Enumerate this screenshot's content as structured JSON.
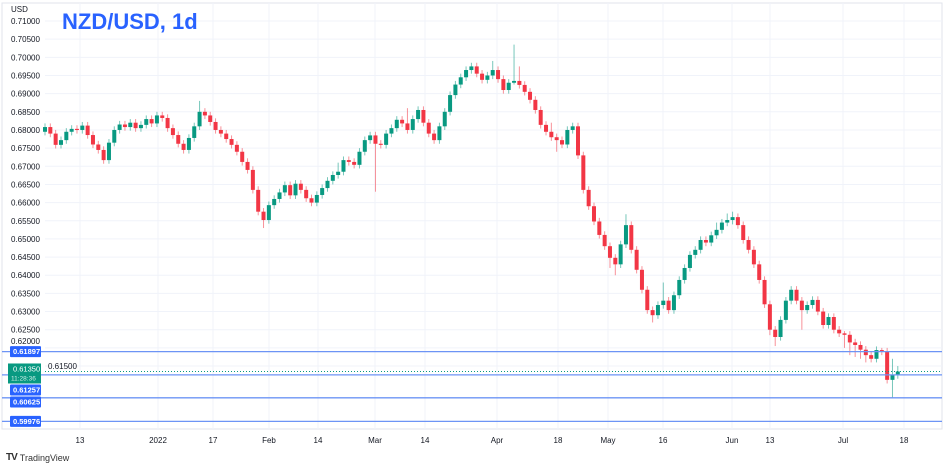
{
  "title": "NZD/USD, 1d",
  "brand": "TradingView",
  "chart_data": {
    "type": "candlestick",
    "title": "NZD/USD, 1d",
    "ylabel": "USD",
    "ylim": [
      0.5985,
      0.7115
    ],
    "y_ticks": [
      "0.71000",
      "0.70500",
      "0.70000",
      "0.69500",
      "0.69000",
      "0.68500",
      "0.68000",
      "0.67500",
      "0.67000",
      "0.66500",
      "0.66000",
      "0.65500",
      "0.65000",
      "0.64500",
      "0.64000",
      "0.63500",
      "0.63000",
      "0.62500",
      "0.62000",
      "0.61500"
    ],
    "x_ticks": [
      "13",
      "2022",
      "17",
      "Feb",
      "14",
      "Mar",
      "14",
      "Apr",
      "18",
      "May",
      "16",
      "Jun",
      "13",
      "Jul",
      "18"
    ],
    "grid": true,
    "colors": {
      "up": "#089981",
      "down": "#f23645",
      "level": "#2962ff",
      "title": "#2962ff"
    },
    "levels": [
      {
        "price": 0.61897,
        "label": "0.61897"
      },
      {
        "price": 0.61257,
        "label": "0.61257"
      },
      {
        "price": 0.60625,
        "label": "0.60625"
      },
      {
        "price": 0.59976,
        "label": "0.59976"
      }
    ],
    "last_price": {
      "price": 0.6135,
      "label": "0.61350",
      "countdown": "11:28:36"
    },
    "candles_ohlc": [
      [
        0.6795,
        0.6818,
        0.6785,
        0.6808
      ],
      [
        0.6808,
        0.6818,
        0.678,
        0.679
      ],
      [
        0.679,
        0.68,
        0.6749,
        0.6759
      ],
      [
        0.6759,
        0.6782,
        0.6749,
        0.6772
      ],
      [
        0.6772,
        0.6805,
        0.6762,
        0.6795
      ],
      [
        0.6795,
        0.6813,
        0.6785,
        0.6803
      ],
      [
        0.6803,
        0.6813,
        0.679,
        0.68
      ],
      [
        0.68,
        0.6822,
        0.679,
        0.6812
      ],
      [
        0.6812,
        0.6822,
        0.6776,
        0.6786
      ],
      [
        0.6786,
        0.6796,
        0.675,
        0.676
      ],
      [
        0.676,
        0.677,
        0.6735,
        0.6745
      ],
      [
        0.6745,
        0.6755,
        0.6707,
        0.6717
      ],
      [
        0.6717,
        0.6775,
        0.6707,
        0.6765
      ],
      [
        0.6765,
        0.681,
        0.6755,
        0.68
      ],
      [
        0.68,
        0.6825,
        0.679,
        0.6815
      ],
      [
        0.6815,
        0.6825,
        0.6798,
        0.6808
      ],
      [
        0.6808,
        0.683,
        0.6798,
        0.682
      ],
      [
        0.682,
        0.683,
        0.6795,
        0.6805
      ],
      [
        0.6805,
        0.6824,
        0.6795,
        0.6814
      ],
      [
        0.6814,
        0.684,
        0.6804,
        0.683
      ],
      [
        0.683,
        0.684,
        0.6808,
        0.6818
      ],
      [
        0.6818,
        0.685,
        0.6808,
        0.684
      ],
      [
        0.684,
        0.685,
        0.6823,
        0.6833
      ],
      [
        0.6833,
        0.6843,
        0.6795,
        0.6805
      ],
      [
        0.6805,
        0.6815,
        0.6776,
        0.6786
      ],
      [
        0.6786,
        0.6796,
        0.6752,
        0.6762
      ],
      [
        0.6762,
        0.6772,
        0.6735,
        0.6745
      ],
      [
        0.6745,
        0.6788,
        0.6735,
        0.6778
      ],
      [
        0.6778,
        0.682,
        0.6768,
        0.681
      ],
      [
        0.681,
        0.688,
        0.68,
        0.685
      ],
      [
        0.685,
        0.686,
        0.683,
        0.684
      ],
      [
        0.684,
        0.685,
        0.6812,
        0.6822
      ],
      [
        0.6822,
        0.6832,
        0.679,
        0.68
      ],
      [
        0.68,
        0.681,
        0.678,
        0.679
      ],
      [
        0.679,
        0.68,
        0.6765,
        0.6775
      ],
      [
        0.6775,
        0.6785,
        0.6749,
        0.6759
      ],
      [
        0.6759,
        0.6769,
        0.673,
        0.674
      ],
      [
        0.674,
        0.675,
        0.6702,
        0.6712
      ],
      [
        0.6712,
        0.6722,
        0.668,
        0.669
      ],
      [
        0.669,
        0.67,
        0.6625,
        0.6635
      ],
      [
        0.6635,
        0.6645,
        0.6565,
        0.6575
      ],
      [
        0.6575,
        0.6585,
        0.653,
        0.6552
      ],
      [
        0.6552,
        0.6603,
        0.6542,
        0.6593
      ],
      [
        0.6593,
        0.662,
        0.6583,
        0.661
      ],
      [
        0.661,
        0.6638,
        0.66,
        0.6628
      ],
      [
        0.6628,
        0.6658,
        0.6618,
        0.6648
      ],
      [
        0.6648,
        0.6658,
        0.661,
        0.662
      ],
      [
        0.662,
        0.6662,
        0.661,
        0.6652
      ],
      [
        0.6652,
        0.6662,
        0.6625,
        0.6635
      ],
      [
        0.6635,
        0.6645,
        0.6602,
        0.6612
      ],
      [
        0.6612,
        0.6622,
        0.659,
        0.66
      ],
      [
        0.66,
        0.6631,
        0.659,
        0.6621
      ],
      [
        0.6621,
        0.665,
        0.6611,
        0.664
      ],
      [
        0.664,
        0.667,
        0.663,
        0.666
      ],
      [
        0.666,
        0.6686,
        0.665,
        0.6676
      ],
      [
        0.6676,
        0.671,
        0.6666,
        0.6685
      ],
      [
        0.6685,
        0.6727,
        0.6675,
        0.6717
      ],
      [
        0.6717,
        0.6727,
        0.6702,
        0.6712
      ],
      [
        0.6712,
        0.6722,
        0.6694,
        0.6704
      ],
      [
        0.6704,
        0.675,
        0.6694,
        0.674
      ],
      [
        0.674,
        0.6782,
        0.673,
        0.6772
      ],
      [
        0.6772,
        0.6795,
        0.6762,
        0.6785
      ],
      [
        0.6785,
        0.6795,
        0.663,
        0.6762
      ],
      [
        0.6762,
        0.6772,
        0.6749,
        0.6759
      ],
      [
        0.6759,
        0.68,
        0.6749,
        0.679
      ],
      [
        0.679,
        0.6815,
        0.678,
        0.6805
      ],
      [
        0.6805,
        0.6838,
        0.6795,
        0.6828
      ],
      [
        0.6828,
        0.6838,
        0.6808,
        0.6818
      ],
      [
        0.6818,
        0.686,
        0.679,
        0.68
      ],
      [
        0.68,
        0.684,
        0.679,
        0.683
      ],
      [
        0.683,
        0.6865,
        0.682,
        0.6855
      ],
      [
        0.6855,
        0.6865,
        0.681,
        0.682
      ],
      [
        0.682,
        0.683,
        0.678,
        0.679
      ],
      [
        0.679,
        0.68,
        0.6762,
        0.6772
      ],
      [
        0.6772,
        0.682,
        0.6762,
        0.681
      ],
      [
        0.681,
        0.686,
        0.68,
        0.685
      ],
      [
        0.685,
        0.6906,
        0.684,
        0.6896
      ],
      [
        0.6896,
        0.6935,
        0.6886,
        0.6925
      ],
      [
        0.6925,
        0.6955,
        0.6915,
        0.6945
      ],
      [
        0.6945,
        0.6975,
        0.6935,
        0.6965
      ],
      [
        0.6965,
        0.6985,
        0.6955,
        0.6975
      ],
      [
        0.6975,
        0.6985,
        0.6945,
        0.6955
      ],
      [
        0.6955,
        0.6965,
        0.6928,
        0.6938
      ],
      [
        0.6938,
        0.696,
        0.6928,
        0.695
      ],
      [
        0.695,
        0.699,
        0.694,
        0.6965
      ],
      [
        0.6965,
        0.6975,
        0.693,
        0.694
      ],
      [
        0.694,
        0.695,
        0.69,
        0.691
      ],
      [
        0.691,
        0.694,
        0.69,
        0.693
      ],
      [
        0.693,
        0.7035,
        0.6925,
        0.6935
      ],
      [
        0.6935,
        0.6975,
        0.6914,
        0.6924
      ],
      [
        0.6924,
        0.6934,
        0.6895,
        0.6905
      ],
      [
        0.6905,
        0.6915,
        0.6873,
        0.6883
      ],
      [
        0.6883,
        0.6893,
        0.6845,
        0.6855
      ],
      [
        0.6855,
        0.6865,
        0.6804,
        0.6814
      ],
      [
        0.6814,
        0.6824,
        0.6785,
        0.6795
      ],
      [
        0.6795,
        0.682,
        0.677,
        0.678
      ],
      [
        0.678,
        0.679,
        0.674,
        0.6772
      ],
      [
        0.6772,
        0.6782,
        0.675,
        0.676
      ],
      [
        0.676,
        0.681,
        0.675,
        0.68
      ],
      [
        0.68,
        0.682,
        0.679,
        0.681
      ],
      [
        0.681,
        0.682,
        0.672,
        0.673
      ],
      [
        0.673,
        0.674,
        0.6625,
        0.6635
      ],
      [
        0.6635,
        0.6645,
        0.658,
        0.659
      ],
      [
        0.659,
        0.66,
        0.6538,
        0.6548
      ],
      [
        0.6548,
        0.6558,
        0.6501,
        0.6511
      ],
      [
        0.6511,
        0.6521,
        0.647,
        0.648
      ],
      [
        0.648,
        0.649,
        0.642,
        0.6448
      ],
      [
        0.6448,
        0.6458,
        0.64,
        0.643
      ],
      [
        0.643,
        0.6495,
        0.642,
        0.6485
      ],
      [
        0.6485,
        0.6568,
        0.6475,
        0.6538
      ],
      [
        0.6538,
        0.6548,
        0.646,
        0.647
      ],
      [
        0.647,
        0.648,
        0.6405,
        0.6415
      ],
      [
        0.6415,
        0.6425,
        0.635,
        0.636
      ],
      [
        0.636,
        0.637,
        0.6294,
        0.6304
      ],
      [
        0.6304,
        0.6314,
        0.627,
        0.629
      ],
      [
        0.629,
        0.6328,
        0.628,
        0.6318
      ],
      [
        0.6318,
        0.638,
        0.6308,
        0.633
      ],
      [
        0.633,
        0.634,
        0.6294,
        0.6304
      ],
      [
        0.6304,
        0.6355,
        0.6294,
        0.6345
      ],
      [
        0.6345,
        0.6397,
        0.6335,
        0.6387
      ],
      [
        0.6387,
        0.643,
        0.6377,
        0.642
      ],
      [
        0.642,
        0.6466,
        0.641,
        0.6456
      ],
      [
        0.6456,
        0.648,
        0.6446,
        0.647
      ],
      [
        0.647,
        0.6507,
        0.646,
        0.6497
      ],
      [
        0.6497,
        0.6507,
        0.648,
        0.649
      ],
      [
        0.649,
        0.652,
        0.648,
        0.651
      ],
      [
        0.651,
        0.6545,
        0.65,
        0.6525
      ],
      [
        0.6525,
        0.6555,
        0.6515,
        0.6545
      ],
      [
        0.6545,
        0.657,
        0.6535,
        0.6552
      ],
      [
        0.6552,
        0.6575,
        0.654,
        0.656
      ],
      [
        0.656,
        0.657,
        0.6528,
        0.6538
      ],
      [
        0.6538,
        0.6548,
        0.6487,
        0.6497
      ],
      [
        0.6497,
        0.6507,
        0.646,
        0.647
      ],
      [
        0.647,
        0.648,
        0.642,
        0.643
      ],
      [
        0.643,
        0.644,
        0.6377,
        0.6387
      ],
      [
        0.6387,
        0.6397,
        0.631,
        0.632
      ],
      [
        0.632,
        0.633,
        0.6235,
        0.625
      ],
      [
        0.625,
        0.626,
        0.6205,
        0.623
      ],
      [
        0.623,
        0.6287,
        0.622,
        0.6277
      ],
      [
        0.6277,
        0.634,
        0.6267,
        0.633
      ],
      [
        0.633,
        0.637,
        0.632,
        0.636
      ],
      [
        0.636,
        0.637,
        0.632,
        0.633
      ],
      [
        0.633,
        0.634,
        0.625,
        0.6304
      ],
      [
        0.6304,
        0.6328,
        0.6294,
        0.6318
      ],
      [
        0.6318,
        0.6342,
        0.6308,
        0.6332
      ],
      [
        0.6332,
        0.6342,
        0.629,
        0.63
      ],
      [
        0.63,
        0.631,
        0.6253,
        0.6263
      ],
      [
        0.6263,
        0.6295,
        0.6253,
        0.6285
      ],
      [
        0.6285,
        0.6295,
        0.624,
        0.625
      ],
      [
        0.625,
        0.626,
        0.623,
        0.624
      ],
      [
        0.624,
        0.6246,
        0.62,
        0.6236
      ],
      [
        0.6236,
        0.6246,
        0.618,
        0.6215
      ],
      [
        0.6215,
        0.6225,
        0.6175,
        0.6208
      ],
      [
        0.6208,
        0.6218,
        0.617,
        0.6195
      ],
      [
        0.6195,
        0.6205,
        0.616,
        0.618
      ],
      [
        0.618,
        0.619,
        0.616,
        0.617
      ],
      [
        0.617,
        0.6204,
        0.616,
        0.6194
      ],
      [
        0.6194,
        0.62,
        0.618,
        0.619
      ],
      [
        0.619,
        0.62,
        0.6102,
        0.6112
      ],
      [
        0.6112,
        0.617,
        0.6063,
        0.6125
      ],
      [
        0.6125,
        0.615,
        0.6115,
        0.6135
      ]
    ]
  }
}
